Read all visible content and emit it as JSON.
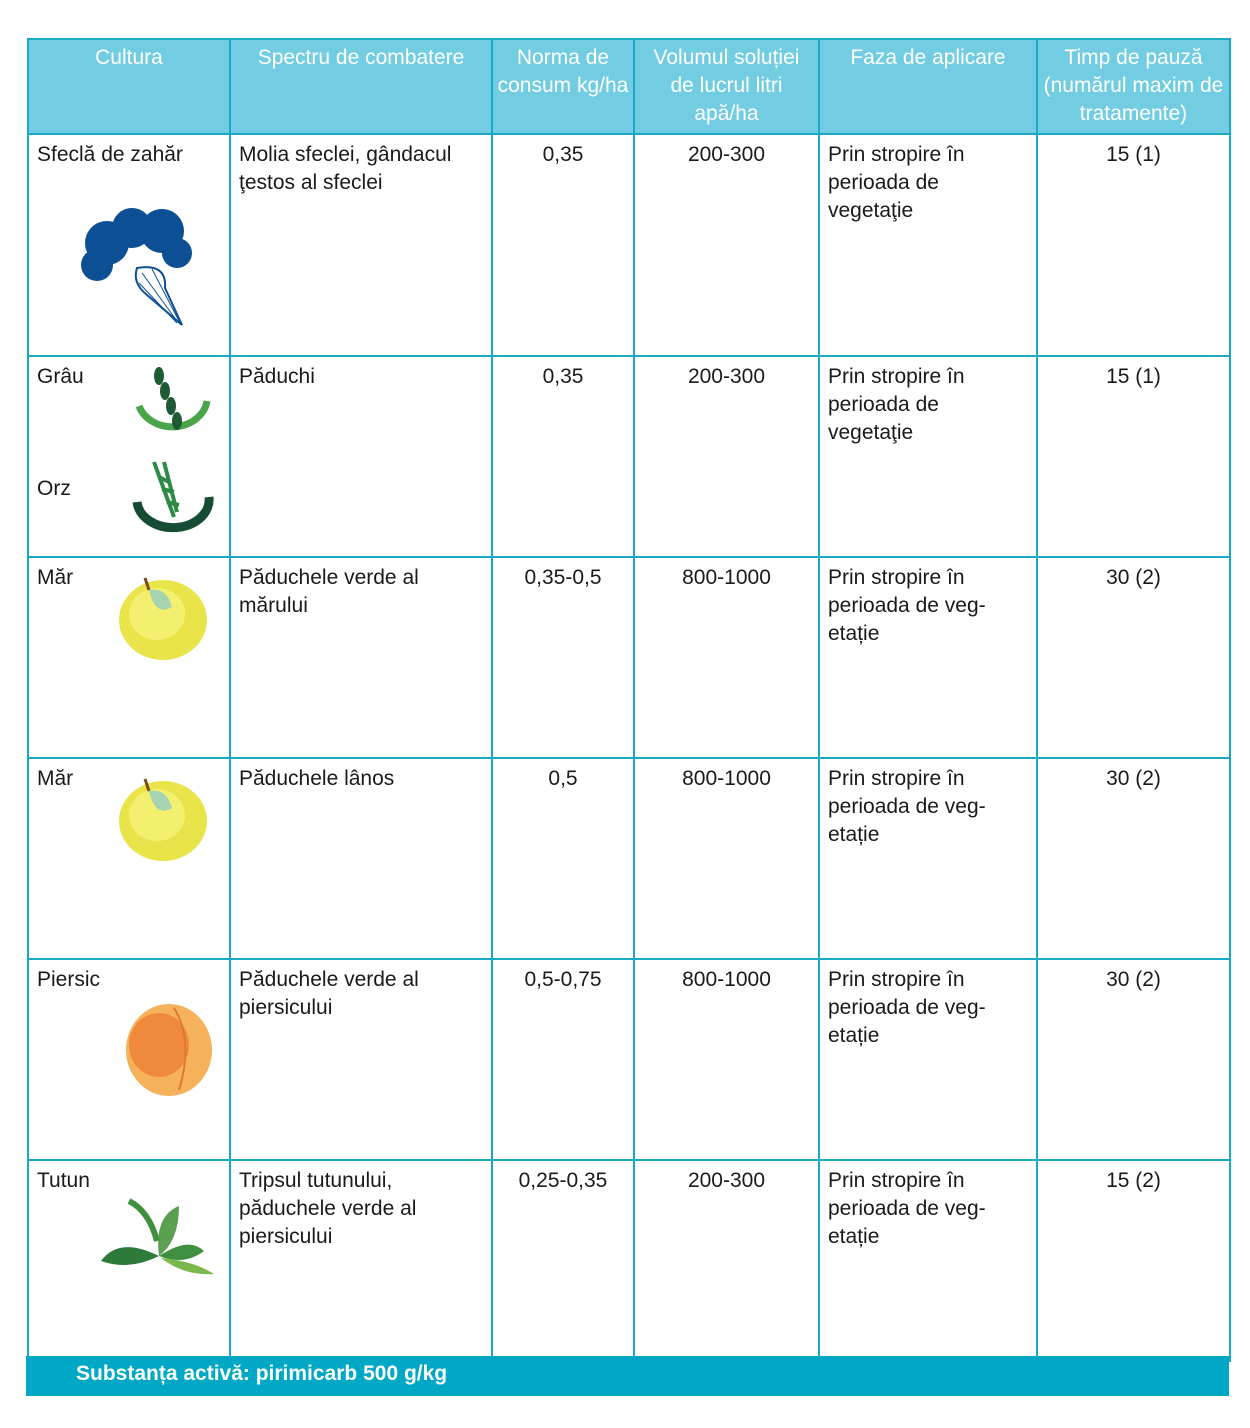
{
  "headers": [
    "Cultura",
    "Spectru de combatere",
    "Norma de consum kg/ha",
    "Volumul soluției de lucrul litri apă/ha",
    "Faza de aplicare",
    "Timp de pauză (numărul maxim de tratamente)"
  ],
  "rows": [
    {
      "crop": "Sfeclă de zahăr",
      "icon": "sugar-beet-icon",
      "pest": "Molia sfeclei, gândacul ţestos al sfeclei",
      "dose": "0,35",
      "volume": "200-300",
      "phase": "Prin stropire în perioada de vegetaţie",
      "pause": "15 (1)"
    },
    {
      "crop": "Grâu",
      "crop2": "Orz",
      "icon": "wheat-icon",
      "pest": "Păduchi",
      "dose": "0,35",
      "volume": "200-300",
      "phase": "Prin stropire în perioada de vegetaţie",
      "pause": "15 (1)"
    },
    {
      "crop": "Măr",
      "icon": "apple-icon",
      "pest": "Păduchele verde al mărului",
      "dose": "0,35-0,5",
      "volume": "800-1000",
      "phase": "Prin stropire în perioada de veg-etație",
      "pause": "30 (2)"
    },
    {
      "crop": "Măr",
      "icon": "apple-icon",
      "pest": "Păduchele lânos",
      "dose": "0,5",
      "volume": "800-1000",
      "phase": "Prin stropire în perioada de veg-etație",
      "pause": "30 (2)"
    },
    {
      "crop": "Piersic",
      "icon": "peach-icon",
      "pest": "Păduchele verde al piersicului",
      "dose": "0,5-0,75",
      "volume": "800-1000",
      "phase": "Prin stropire în perioada de veg-etație",
      "pause": "30 (2)"
    },
    {
      "crop": "Tutun",
      "icon": "tobacco-leaf-icon",
      "pest": "Tripsul tutunului, păduchele verde al piersicului",
      "dose": "0,25-0,35",
      "volume": "200-300",
      "phase": "Prin stropire în perioada de veg-etație",
      "pause": "15 (2)"
    }
  ],
  "footer": "Substanța activă: pirimicarb 500 g/kg",
  "colors": {
    "header": "#72cde3",
    "border": "#1aa9c4",
    "footer": "#00a8c6"
  }
}
